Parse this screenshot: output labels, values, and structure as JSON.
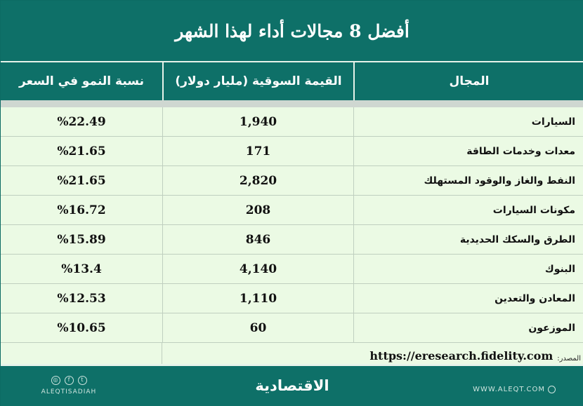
{
  "title": "أفضل 8 مجالات أداء لهذا الشهر",
  "columns": {
    "sector": "المجال",
    "market_value": "القيمة السوقية (مليار دولار)",
    "growth": "نسبة النمو في السعر"
  },
  "rows": [
    {
      "sector": "السيارات",
      "market_value": "1,940",
      "growth": "%22.49"
    },
    {
      "sector": "معدات وخدمات الطاقة",
      "market_value": "171",
      "growth": "%21.65"
    },
    {
      "sector": "النفط والغاز والوقود المستهلك",
      "market_value": "2,820",
      "growth": "%21.65"
    },
    {
      "sector": "مكونات السيارات",
      "market_value": "208",
      "growth": "%16.72"
    },
    {
      "sector": "الطرق والسكك الحديدية",
      "market_value": "846",
      "growth": "%15.89"
    },
    {
      "sector": "البنوك",
      "market_value": "4,140",
      "growth": "%13.4"
    },
    {
      "sector": "المعادن والتعدين",
      "market_value": "1,110",
      "growth": "%12.53"
    },
    {
      "sector": "الموزعون",
      "market_value": "60",
      "growth": "%10.65"
    }
  ],
  "source": {
    "label": "المصدر:",
    "url": "https://eresearch.fidelity.com"
  },
  "footer": {
    "social_handle": "ALEQTISADIAH",
    "logo": "الاقتصادية",
    "website": "WWW.ALEQT.COM",
    "social_icons": [
      "instagram-icon",
      "facebook-icon",
      "twitter-icon"
    ]
  },
  "colors": {
    "header_bg": "#0e7068",
    "row_bg": "#ebfae4"
  }
}
